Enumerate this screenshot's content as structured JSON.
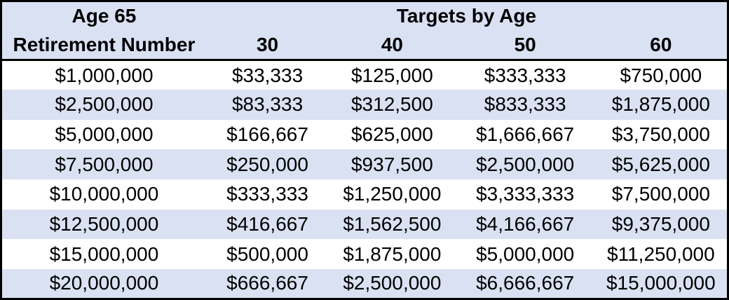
{
  "table": {
    "title_column": {
      "line1": "Age 65",
      "line2": "Retirement Number"
    },
    "group_header": "Targets by Age",
    "age_columns": [
      "30",
      "40",
      "50",
      "60"
    ],
    "rows": [
      {
        "retirement_number": "$1,000,000",
        "targets": [
          "$33,333",
          "$125,000",
          "$333,333",
          "$750,000"
        ]
      },
      {
        "retirement_number": "$2,500,000",
        "targets": [
          "$83,333",
          "$312,500",
          "$833,333",
          "$1,875,000"
        ]
      },
      {
        "retirement_number": "$5,000,000",
        "targets": [
          "$166,667",
          "$625,000",
          "$1,666,667",
          "$3,750,000"
        ]
      },
      {
        "retirement_number": "$7,500,000",
        "targets": [
          "$250,000",
          "$937,500",
          "$2,500,000",
          "$5,625,000"
        ]
      },
      {
        "retirement_number": "$10,000,000",
        "targets": [
          "$333,333",
          "$1,250,000",
          "$3,333,333",
          "$7,500,000"
        ]
      },
      {
        "retirement_number": "$12,500,000",
        "targets": [
          "$416,667",
          "$1,562,500",
          "$4,166,667",
          "$9,375,000"
        ]
      },
      {
        "retirement_number": "$15,000,000",
        "targets": [
          "$500,000",
          "$1,875,000",
          "$5,000,000",
          "$11,250,000"
        ]
      },
      {
        "retirement_number": "$20,000,000",
        "targets": [
          "$666,667",
          "$2,500,000",
          "$6,666,667",
          "$15,000,000"
        ]
      }
    ],
    "colors": {
      "header_background": "#d9e1f2",
      "row_shaded_background": "#d9e1f2",
      "row_plain_background": "#ffffff",
      "border": "#000000",
      "text": "#000000"
    }
  }
}
